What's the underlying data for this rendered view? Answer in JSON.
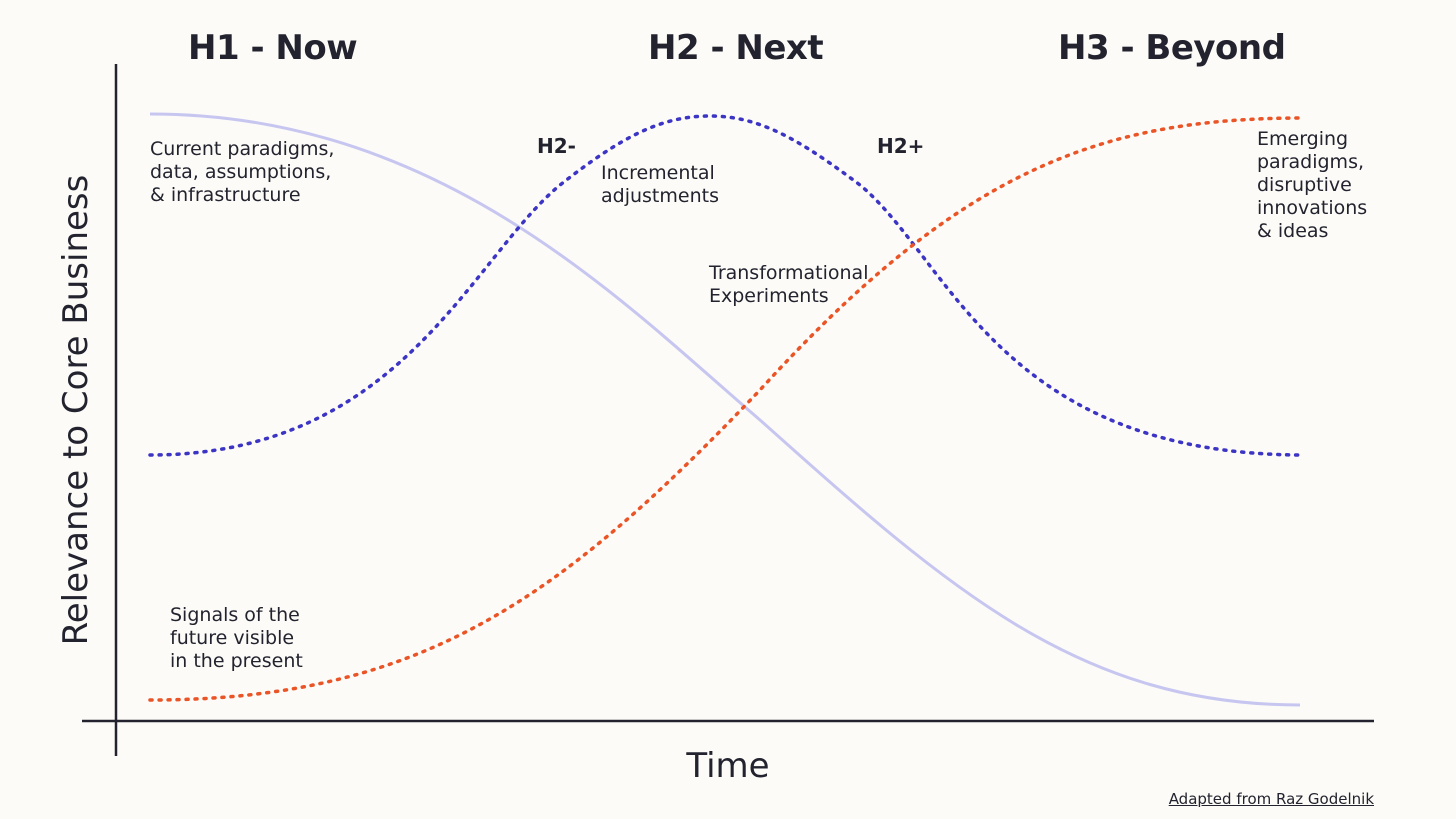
{
  "colors": {
    "background": "#fcfbf7",
    "h1_curve": "#c7c6f0",
    "h2_curve": "#3b34c4",
    "h3_curve": "#ea5426",
    "axis": "#23232f",
    "text": "#23232f"
  },
  "headers": {
    "h1": "H1 - Now",
    "h2": "H2 - Next",
    "h3": "H3 - Beyond"
  },
  "labels": {
    "h1_current": "Current paradigms,\ndata, assumptions,\n& infrastructure",
    "h3_signals": "Signals of the\nfuture visible\nin the present",
    "h2_incremental": "Incremental\nadjustments",
    "h2_transformational": "Transformational\nExperiments",
    "h3_emerging": "Emerging\nparadigms,\ndisruptive\ninnovations\n& ideas",
    "h2_minus": "H2-",
    "h2_plus": "H2+"
  },
  "axes": {
    "x_label": "Time",
    "y_label": "Relevance to Core Business"
  },
  "credit": "Adapted from Raz Godelnik",
  "curves": {
    "h1": {
      "style": "solid",
      "shape": "descending s-curve"
    },
    "h2": {
      "style": "dotted",
      "shape": "bell curve"
    },
    "h3": {
      "style": "dotted",
      "shape": "ascending s-curve"
    }
  }
}
